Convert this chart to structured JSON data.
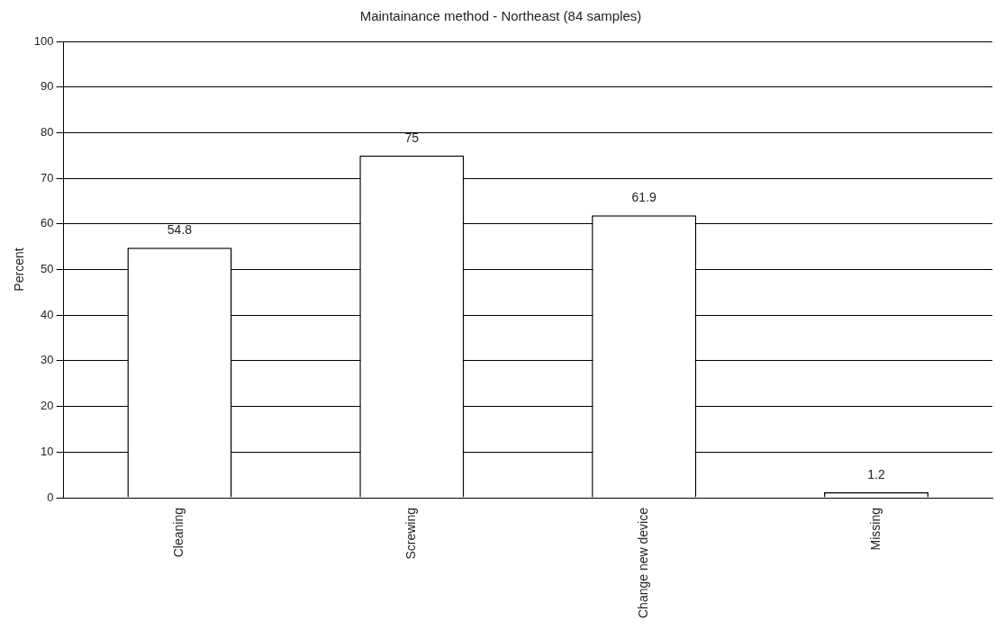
{
  "chart_data": {
    "type": "bar",
    "title": "Maintainance method - Northeast (84 samples)",
    "ylabel": "Percent",
    "categories": [
      "Cleaning",
      "Screwing",
      "Change new device",
      "Missing"
    ],
    "values": [
      54.8,
      75,
      61.9,
      1.2
    ],
    "color": "#ffffff",
    "ylim": [
      0,
      100
    ],
    "yticks": [
      0,
      10,
      20,
      30,
      40,
      50,
      60,
      70,
      80,
      90,
      100
    ],
    "grid": "y",
    "legend": false,
    "data_labels": true
  }
}
